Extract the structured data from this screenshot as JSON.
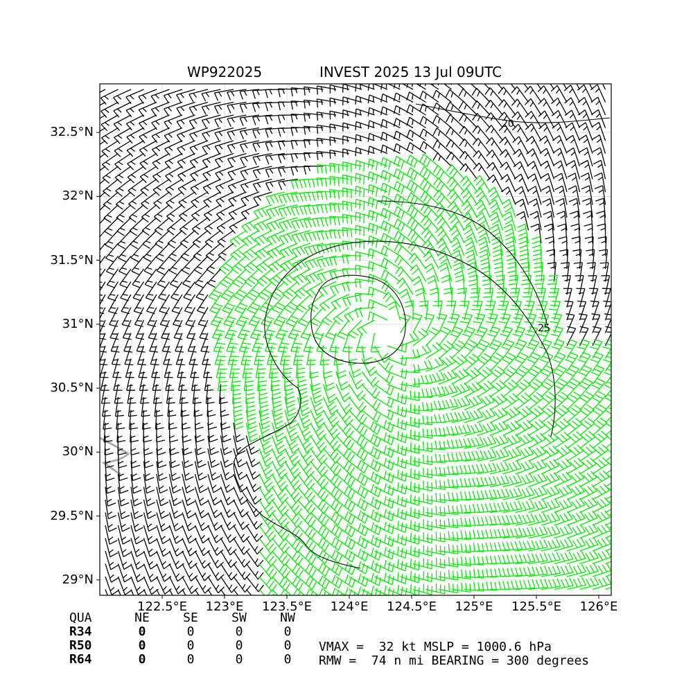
{
  "header": {
    "storm_id": "WP922025",
    "storm_label": "INVEST 2025 13 Jul 09UTC"
  },
  "chart_data": {
    "type": "wind_barb_map",
    "x_ticks": [
      "122.5°E",
      "123°E",
      "123.5°E",
      "124°E",
      "124.5°E",
      "125°E",
      "125.5°E",
      "126°E"
    ],
    "x_tick_values": [
      122.5,
      123.0,
      123.5,
      124.0,
      124.5,
      125.0,
      125.5,
      126.0
    ],
    "y_ticks": [
      "32.5°N",
      "32°N",
      "31.5°N",
      "31°N",
      "30.5°N",
      "30°N",
      "29.5°N",
      "29°N"
    ],
    "y_tick_values": [
      32.5,
      32.0,
      31.5,
      31.0,
      30.5,
      30.0,
      29.5,
      29.0
    ],
    "xlim": [
      122.0,
      126.1
    ],
    "ylim": [
      28.88,
      32.88
    ],
    "center_lon": 124.3,
    "center_lat": 30.95,
    "contour_label_a": "20",
    "contour_label_b": "25",
    "barb_color_low": "#000000",
    "barb_color_high": "#00ee00",
    "grid": true
  },
  "quadrant_table": {
    "headers": [
      "QUA",
      "NE",
      "SE",
      "SW",
      "NW"
    ],
    "rows": [
      {
        "label": "R34",
        "values": [
          "0",
          "0",
          "0",
          "0"
        ]
      },
      {
        "label": "R50",
        "values": [
          "0",
          "0",
          "0",
          "0"
        ]
      },
      {
        "label": "R64",
        "values": [
          "0",
          "0",
          "0",
          "0"
        ]
      }
    ]
  },
  "info": {
    "line1": "VMAX =  32 kt MSLP = 1000.6 hPa",
    "line2": "RMW =  74 n mi BEARING = 300 degrees"
  }
}
